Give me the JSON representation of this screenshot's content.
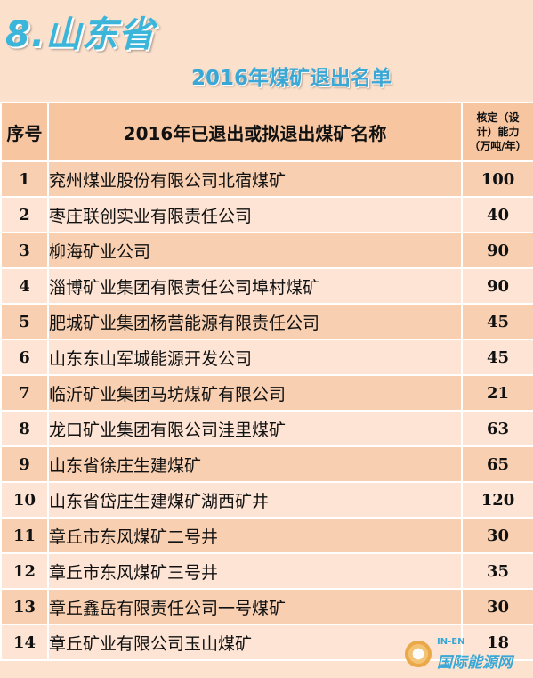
{
  "header": {
    "province": "8.山东省",
    "subtitle": "2016年煤矿退出名单"
  },
  "table": {
    "col_no": "序号",
    "col_name": "2016年已退出或拟退出煤矿名称",
    "col_cap_line1": "核定（设",
    "col_cap_line2": "计）能力",
    "col_cap_line3": "（万吨/年）",
    "rows": [
      {
        "no": "1",
        "name": "兖州煤业股份有限公司北宿煤矿",
        "cap": "100"
      },
      {
        "no": "2",
        "name": "枣庄联创实业有限责任公司",
        "cap": "40"
      },
      {
        "no": "3",
        "name": "柳海矿业公司",
        "cap": "90"
      },
      {
        "no": "4",
        "name": "淄博矿业集团有限责任公司埠村煤矿",
        "cap": "90"
      },
      {
        "no": "5",
        "name": "肥城矿业集团杨营能源有限责任公司",
        "cap": "45"
      },
      {
        "no": "6",
        "name": "山东东山军城能源开发公司",
        "cap": "45"
      },
      {
        "no": "7",
        "name": "临沂矿业集团马坊煤矿有限公司",
        "cap": "21"
      },
      {
        "no": "8",
        "name": "龙口矿业集团有限公司洼里煤矿",
        "cap": "63"
      },
      {
        "no": "9",
        "name": "山东省徐庄生建煤矿",
        "cap": "65"
      },
      {
        "no": "10",
        "name": "山东省岱庄生建煤矿湖西矿井",
        "cap": "120"
      },
      {
        "no": "11",
        "name": "章丘市东风煤矿二号井",
        "cap": "30"
      },
      {
        "no": "12",
        "name": "章丘市东风煤矿三号井",
        "cap": "35"
      },
      {
        "no": "13",
        "name": "章丘鑫岳有限责任公司一号煤矿",
        "cap": "30"
      },
      {
        "no": "14",
        "name": "章丘矿业有限公司玉山煤矿",
        "cap": "18"
      }
    ]
  },
  "watermark": {
    "en": "IN-EN",
    "cn": "国际能源网",
    "icon": "sun-logo-icon"
  },
  "colors": {
    "title_blue": "#3bb6da",
    "header_bg": "#f7c6a0",
    "row_dark": "#f8cfb0",
    "row_light": "#fde4d4"
  }
}
